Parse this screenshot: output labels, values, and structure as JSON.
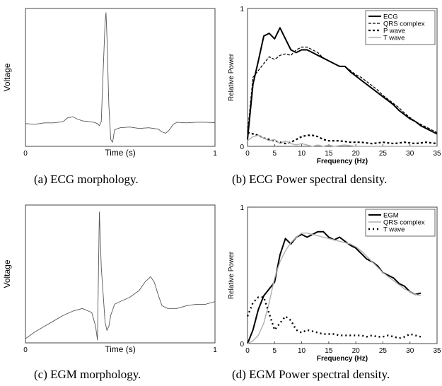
{
  "captions": [
    "(a) ECG morphology.",
    "(b) ECG Power spectral density.",
    "(c) EGM morphology.",
    "(d) EGM Power spectral density."
  ],
  "chart_data": [
    {
      "id": "a",
      "type": "line",
      "xlabel": "Time (s)",
      "ylabel": "Voltage",
      "xlim": [
        0,
        1
      ],
      "ylim": [
        0,
        1
      ],
      "xticks": [
        0,
        1
      ],
      "yticks": [],
      "series": [
        {
          "x": [
            0,
            0.05,
            0.1,
            0.15,
            0.2,
            0.22,
            0.25,
            0.27,
            0.3,
            0.33,
            0.36,
            0.38,
            0.39,
            0.4,
            0.41,
            0.42,
            0.425,
            0.43,
            0.44,
            0.45,
            0.46,
            0.47,
            0.5,
            0.55,
            0.6,
            0.65,
            0.7,
            0.72,
            0.74,
            0.76,
            0.78,
            0.8,
            0.85,
            0.9,
            0.95,
            1.0
          ],
          "y": [
            0.165,
            0.16,
            0.17,
            0.17,
            0.18,
            0.205,
            0.215,
            0.2,
            0.185,
            0.18,
            0.175,
            0.165,
            0.15,
            0.18,
            0.55,
            0.9,
            0.97,
            0.8,
            0.3,
            0.05,
            0.03,
            0.12,
            0.135,
            0.14,
            0.13,
            0.135,
            0.125,
            0.105,
            0.095,
            0.12,
            0.16,
            0.175,
            0.17,
            0.175,
            0.175,
            0.172
          ]
        }
      ]
    },
    {
      "id": "b",
      "type": "line",
      "xlabel": "Frequency (Hz)",
      "ylabel": "Relative Power",
      "xlim": [
        0,
        35
      ],
      "ylim": [
        0,
        1
      ],
      "xticks": [
        0,
        5,
        10,
        15,
        20,
        25,
        30,
        35
      ],
      "yticks": [
        0,
        1
      ],
      "legend": "top-right",
      "series": [
        {
          "name": "ECG",
          "style": "solid-thick",
          "x": [
            0,
            1,
            2,
            3,
            4,
            5,
            6,
            7,
            8,
            9,
            10,
            11,
            12,
            13,
            14,
            15,
            16,
            17,
            18,
            19,
            20,
            21,
            22,
            23,
            24,
            25,
            26,
            27,
            28,
            29,
            30,
            31,
            32,
            33,
            34,
            35
          ],
          "y": [
            0.05,
            0.45,
            0.62,
            0.8,
            0.82,
            0.78,
            0.86,
            0.78,
            0.7,
            0.68,
            0.7,
            0.7,
            0.68,
            0.66,
            0.64,
            0.62,
            0.6,
            0.58,
            0.58,
            0.54,
            0.51,
            0.48,
            0.45,
            0.42,
            0.39,
            0.36,
            0.33,
            0.3,
            0.26,
            0.23,
            0.2,
            0.18,
            0.15,
            0.13,
            0.11,
            0.09
          ]
        },
        {
          "name": "QRS complex",
          "style": "dashed-thin",
          "x": [
            0,
            1,
            2,
            3,
            4,
            5,
            6,
            7,
            8,
            9,
            10,
            11,
            12,
            13,
            14,
            15,
            16,
            17,
            18,
            19,
            20,
            21,
            22,
            23,
            24,
            25,
            26,
            27,
            28,
            29,
            30,
            31,
            32,
            33,
            34,
            35
          ],
          "y": [
            0.1,
            0.5,
            0.55,
            0.6,
            0.65,
            0.63,
            0.66,
            0.67,
            0.66,
            0.7,
            0.72,
            0.72,
            0.7,
            0.68,
            0.64,
            0.62,
            0.6,
            0.58,
            0.58,
            0.55,
            0.52,
            0.5,
            0.47,
            0.44,
            0.41,
            0.37,
            0.34,
            0.31,
            0.28,
            0.24,
            0.21,
            0.18,
            0.16,
            0.14,
            0.12,
            0.1
          ]
        },
        {
          "name": "P wave",
          "style": "dashed-thick",
          "x": [
            0,
            1,
            2,
            3,
            4,
            5,
            6,
            7,
            8,
            9,
            10,
            11,
            12,
            13,
            14,
            15,
            17,
            19,
            21,
            23,
            25,
            27,
            29,
            31,
            33,
            35
          ],
          "y": [
            0.1,
            0.09,
            0.08,
            0.06,
            0.05,
            0.04,
            0.03,
            0.02,
            0.03,
            0.05,
            0.07,
            0.08,
            0.08,
            0.07,
            0.05,
            0.04,
            0.04,
            0.03,
            0.03,
            0.02,
            0.03,
            0.02,
            0.03,
            0.02,
            0.03,
            0.02
          ]
        },
        {
          "name": "T wave",
          "style": "solid-light",
          "x": [
            0,
            1,
            2,
            3,
            4,
            5,
            6,
            7,
            8,
            9,
            10,
            11,
            12,
            13,
            14,
            15,
            16,
            18,
            20,
            25,
            30,
            35
          ],
          "y": [
            0.04,
            0.07,
            0.08,
            0.06,
            0.04,
            0.05,
            0.02,
            0.04,
            0.02,
            0.01,
            0.02,
            0.01,
            0.0,
            0.01,
            0.0,
            0.01,
            0.0,
            0.01,
            0.0,
            0.0,
            0.0,
            0.0
          ]
        }
      ]
    },
    {
      "id": "c",
      "type": "line",
      "xlabel": "Time (s)",
      "ylabel": "Voltage",
      "xlim": [
        0,
        1
      ],
      "ylim": [
        0,
        1
      ],
      "xticks": [
        0,
        1
      ],
      "yticks": [],
      "series": [
        {
          "x": [
            0,
            0.05,
            0.1,
            0.15,
            0.2,
            0.25,
            0.3,
            0.35,
            0.37,
            0.38,
            0.385,
            0.39,
            0.4,
            0.41,
            0.42,
            0.43,
            0.44,
            0.45,
            0.47,
            0.5,
            0.55,
            0.6,
            0.63,
            0.66,
            0.68,
            0.7,
            0.72,
            0.75,
            0.8,
            0.85,
            0.9,
            0.95,
            1.0
          ],
          "y": [
            0.03,
            0.08,
            0.12,
            0.16,
            0.2,
            0.23,
            0.25,
            0.22,
            0.12,
            0.02,
            0.5,
            0.95,
            0.55,
            0.35,
            0.15,
            0.09,
            0.12,
            0.2,
            0.28,
            0.3,
            0.33,
            0.38,
            0.44,
            0.48,
            0.44,
            0.35,
            0.27,
            0.25,
            0.25,
            0.27,
            0.28,
            0.28,
            0.3
          ]
        }
      ]
    },
    {
      "id": "d",
      "type": "line",
      "xlabel": "Frequency (Hz)",
      "ylabel": "Relative Power",
      "xlim": [
        0,
        35
      ],
      "ylim": [
        0,
        1
      ],
      "xticks": [
        0,
        5,
        10,
        15,
        20,
        25,
        30,
        35
      ],
      "yticks": [
        0,
        1
      ],
      "legend": "top-right",
      "series": [
        {
          "name": "EGM",
          "style": "solid-thick",
          "x": [
            0,
            1,
            2,
            3,
            4,
            5,
            6,
            7,
            8,
            9,
            10,
            11,
            12,
            13,
            14,
            15,
            16,
            17,
            18,
            19,
            20,
            21,
            22,
            23,
            24,
            25,
            26,
            27,
            28,
            29,
            30,
            31,
            32
          ],
          "y": [
            0.0,
            0.1,
            0.25,
            0.35,
            0.4,
            0.45,
            0.65,
            0.77,
            0.73,
            0.78,
            0.8,
            0.78,
            0.8,
            0.82,
            0.82,
            0.78,
            0.76,
            0.78,
            0.75,
            0.72,
            0.7,
            0.66,
            0.62,
            0.6,
            0.57,
            0.52,
            0.5,
            0.48,
            0.44,
            0.42,
            0.38,
            0.36,
            0.37
          ]
        },
        {
          "name": "QRS complex",
          "style": "solid-light",
          "x": [
            0,
            1,
            2,
            3,
            4,
            5,
            6,
            7,
            8,
            9,
            10,
            11,
            12,
            13,
            14,
            15,
            16,
            17,
            18,
            19,
            20,
            21,
            22,
            23,
            24,
            25,
            26,
            27,
            28,
            29,
            30,
            31,
            32
          ],
          "y": [
            0.0,
            0.02,
            0.06,
            0.15,
            0.3,
            0.48,
            0.6,
            0.68,
            0.74,
            0.78,
            0.81,
            0.81,
            0.8,
            0.79,
            0.78,
            0.77,
            0.76,
            0.75,
            0.74,
            0.73,
            0.71,
            0.68,
            0.64,
            0.6,
            0.56,
            0.52,
            0.49,
            0.46,
            0.43,
            0.4,
            0.38,
            0.36,
            0.35
          ]
        },
        {
          "name": "T wave",
          "style": "dotted-thick",
          "x": [
            0,
            1,
            2,
            3,
            4,
            5,
            6,
            7,
            8,
            9,
            10,
            11,
            12,
            13,
            14,
            15,
            16,
            17,
            18,
            19,
            20,
            21,
            22,
            23,
            24,
            25,
            26,
            27,
            28,
            29,
            30,
            31,
            32
          ],
          "y": [
            0.2,
            0.3,
            0.34,
            0.34,
            0.22,
            0.1,
            0.15,
            0.2,
            0.17,
            0.1,
            0.08,
            0.1,
            0.09,
            0.08,
            0.07,
            0.07,
            0.07,
            0.06,
            0.06,
            0.06,
            0.06,
            0.06,
            0.05,
            0.06,
            0.05,
            0.05,
            0.06,
            0.05,
            0.04,
            0.05,
            0.07,
            0.06,
            0.05
          ]
        }
      ]
    }
  ]
}
